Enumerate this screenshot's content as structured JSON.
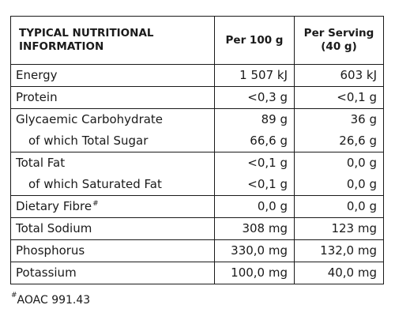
{
  "header": {
    "name_line1": "TYPICAL NUTRITIONAL",
    "name_line2": "INFORMATION",
    "per100": "Per 100 g",
    "perServing_line1": "Per Serving",
    "perServing_line2": "(40 g)"
  },
  "rows": [
    {
      "name": "Energy",
      "per100": "1 507 kJ",
      "perServing": "603 kJ"
    },
    {
      "name": "Protein",
      "per100": "<0,3 g",
      "perServing": "<0,1 g"
    },
    {
      "name": "Glycaemic Carbohydrate",
      "per100": "89 g",
      "perServing": "36 g"
    },
    {
      "name": "of which Total Sugar",
      "per100": "66,6 g",
      "perServing": "26,6 g"
    },
    {
      "name": "Total Fat",
      "per100": "<0,1 g",
      "perServing": "0,0 g"
    },
    {
      "name": "of which Saturated Fat",
      "per100": "<0,1 g",
      "perServing": "0,0 g"
    },
    {
      "name": "Dietary Fibre",
      "footnote_mark": "#",
      "per100": "0,0 g",
      "perServing": "0,0 g"
    },
    {
      "name": "Total Sodium",
      "per100": "308 mg",
      "perServing": "123 mg"
    },
    {
      "name": "Phosphorus",
      "per100": "330,0 mg",
      "perServing": "132,0 mg"
    },
    {
      "name": "Potassium",
      "per100": "100,0 mg",
      "perServing": "40,0 mg"
    }
  ],
  "footnote": {
    "symbol": "#",
    "text": "AOAC 991.43"
  }
}
